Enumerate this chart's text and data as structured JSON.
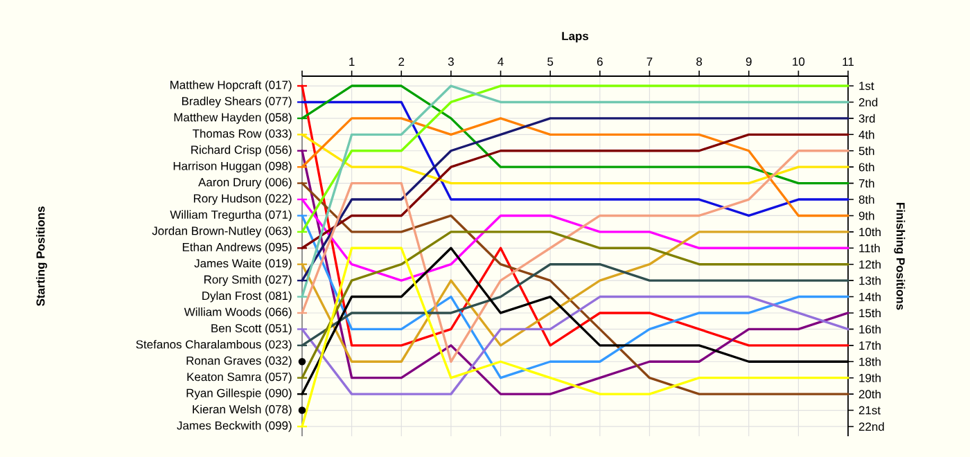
{
  "chart_data": {
    "type": "line",
    "xlabel": "Laps",
    "ylabel": "Finishing Positions",
    "x": [
      0,
      1,
      2,
      3,
      4,
      5,
      6,
      7,
      8,
      9,
      10,
      11
    ],
    "xlim": [
      0,
      11
    ],
    "xticks": [
      {
        "value": 0,
        "label": null
      },
      1,
      2,
      3,
      4,
      5,
      6,
      7,
      8,
      9,
      10,
      11
    ],
    "ylim": [
      22.6,
      0.4
    ],
    "yticks": [
      {
        "value": 1,
        "label": "1st"
      },
      {
        "value": 2,
        "label": "2nd"
      },
      {
        "value": 3,
        "label": "3rd"
      },
      {
        "value": 4,
        "label": "4th"
      },
      {
        "value": 5,
        "label": "5th"
      },
      {
        "value": 6,
        "label": "6th"
      },
      {
        "value": 7,
        "label": "7th"
      },
      {
        "value": 8,
        "label": "8th"
      },
      {
        "value": 9,
        "label": "9th"
      },
      {
        "value": 10,
        "label": "10th"
      },
      {
        "value": 11,
        "label": "11th"
      },
      {
        "value": 12,
        "label": "12th"
      },
      {
        "value": 13,
        "label": "13th"
      },
      {
        "value": 14,
        "label": "14th"
      },
      {
        "value": 15,
        "label": "15th"
      },
      {
        "value": 16,
        "label": "16th"
      },
      {
        "value": 17,
        "label": "17th"
      },
      {
        "value": 18,
        "label": "18th"
      },
      {
        "value": 19,
        "label": "19th"
      },
      {
        "value": 20,
        "label": "20th"
      },
      {
        "value": 21,
        "label": "21st"
      },
      {
        "value": 22,
        "label": "22nd"
      }
    ],
    "annotations": [
      "Starting Positions"
    ],
    "grid": true,
    "legend": "left",
    "series": [
      {
        "name": "Matthew Hopcraft (017)",
        "color": "#ff0000",
        "values": [
          1,
          17,
          17,
          16,
          11,
          17,
          15,
          15,
          16,
          17,
          17,
          17
        ]
      },
      {
        "name": "Bradley Shears (077)",
        "color": "#1010e0",
        "values": [
          2,
          2,
          2,
          8,
          8,
          8,
          8,
          8,
          8,
          9,
          8,
          8
        ]
      },
      {
        "name": "Matthew Hayden (058)",
        "color": "#00a000",
        "values": [
          3,
          1,
          1,
          3,
          6,
          6,
          6,
          6,
          6,
          6,
          7,
          7
        ]
      },
      {
        "name": "Thomas Row (033)",
        "color": "#ffe600",
        "values": [
          4,
          6,
          6,
          7,
          7,
          7,
          7,
          7,
          7,
          7,
          6,
          6
        ]
      },
      {
        "name": "Richard Crisp (056)",
        "color": "#800080",
        "values": [
          5,
          19,
          19,
          17,
          20,
          20,
          19,
          18,
          18,
          16,
          16,
          15
        ]
      },
      {
        "name": "Harrison Huggan (098)",
        "color": "#ff8000",
        "values": [
          6,
          3,
          3,
          4,
          3,
          4,
          4,
          4,
          4,
          5,
          9,
          9
        ]
      },
      {
        "name": "Aaron Drury (006)",
        "color": "#8b4513",
        "values": [
          7,
          10,
          10,
          9,
          12,
          13,
          16,
          19,
          20,
          20,
          20,
          20
        ]
      },
      {
        "name": "Rory Hudson (022)",
        "color": "#ff00ff",
        "values": [
          8,
          12,
          13,
          12,
          9,
          9,
          10,
          10,
          11,
          11,
          11,
          11
        ]
      },
      {
        "name": "William Tregurtha (071)",
        "color": "#3399ff",
        "values": [
          9,
          16,
          16,
          14,
          19,
          18,
          18,
          16,
          15,
          15,
          14,
          14
        ]
      },
      {
        "name": "Jordan Brown-Nutley (063)",
        "color": "#80ff00",
        "values": [
          10,
          5,
          5,
          2,
          1,
          1,
          1,
          1,
          1,
          1,
          1,
          1
        ]
      },
      {
        "name": "Ethan Andrews (095)",
        "color": "#800000",
        "values": [
          11,
          9,
          9,
          6,
          5,
          5,
          5,
          5,
          5,
          4,
          4,
          4
        ]
      },
      {
        "name": "James Waite (019)",
        "color": "#daa520",
        "values": [
          12,
          18,
          18,
          13,
          17,
          15,
          13,
          12,
          10,
          10,
          10,
          10
        ]
      },
      {
        "name": "Rory Smith (027)",
        "color": "#191970",
        "values": [
          13,
          8,
          8,
          5,
          4,
          3,
          3,
          3,
          3,
          3,
          3,
          3
        ]
      },
      {
        "name": "Dylan Frost (081)",
        "color": "#70c8b0",
        "values": [
          14,
          4,
          4,
          1,
          2,
          2,
          2,
          2,
          2,
          2,
          2,
          2
        ]
      },
      {
        "name": "William Woods (066)",
        "color": "#f4a080",
        "values": [
          15,
          7,
          7,
          18,
          13,
          11,
          9,
          9,
          9,
          8,
          5,
          5
        ]
      },
      {
        "name": "Ben Scott (051)",
        "color": "#9370db",
        "values": [
          16,
          20,
          20,
          20,
          16,
          16,
          14,
          14,
          14,
          14,
          15,
          16
        ]
      },
      {
        "name": "Stefanos Charalambous (023)",
        "color": "#2f4f4f",
        "values": [
          17,
          15,
          15,
          15,
          14,
          12,
          12,
          13,
          13,
          13,
          13,
          13
        ]
      },
      {
        "name": "Ronan Graves (032)",
        "color": "#000000",
        "marker": "circle",
        "values": [
          18,
          null,
          null,
          null,
          null,
          null,
          null,
          null,
          null,
          null,
          null,
          null
        ]
      },
      {
        "name": "Keaton Samra (057)",
        "color": "#808000",
        "values": [
          19,
          13,
          12,
          10,
          10,
          10,
          11,
          11,
          12,
          12,
          12,
          12
        ]
      },
      {
        "name": "Ryan Gillespie (090)",
        "color": "#000000",
        "values": [
          20,
          14,
          14,
          11,
          15,
          14,
          17,
          17,
          17,
          18,
          18,
          18
        ]
      },
      {
        "name": "Kieran Welsh (078)",
        "color": "#000000",
        "marker": "circle",
        "values": [
          21,
          null,
          null,
          null,
          null,
          null,
          null,
          null,
          null,
          null,
          null,
          null
        ]
      },
      {
        "name": "James Beckwith (099)",
        "color": "#ffff00",
        "values": [
          22,
          11,
          11,
          19,
          18,
          19,
          20,
          20,
          19,
          19,
          19,
          19
        ]
      }
    ]
  }
}
